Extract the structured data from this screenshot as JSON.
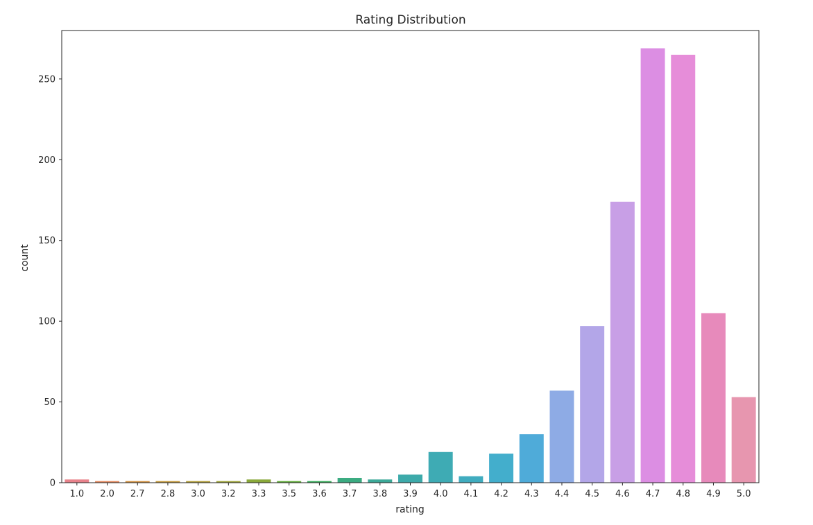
{
  "chart_data": {
    "type": "bar",
    "title": "Rating Distribution",
    "xlabel": "rating",
    "ylabel": "count",
    "ylim": [
      0,
      280
    ],
    "yticks": [
      0,
      50,
      100,
      150,
      200,
      250
    ],
    "grid": false,
    "legend": "none",
    "categories": [
      "1.0",
      "2.0",
      "2.7",
      "2.8",
      "3.0",
      "3.2",
      "3.3",
      "3.5",
      "3.6",
      "3.7",
      "3.8",
      "3.9",
      "4.0",
      "4.1",
      "4.2",
      "4.3",
      "4.4",
      "4.5",
      "4.6",
      "4.7",
      "4.8",
      "4.9",
      "5.0"
    ],
    "values": [
      2,
      1,
      1,
      1,
      1,
      1,
      2,
      1,
      1,
      3,
      2,
      5,
      19,
      4,
      18,
      30,
      57,
      97,
      174,
      269,
      265,
      105,
      53
    ],
    "colors": [
      "#e8828b",
      "#e58a5e",
      "#d39240",
      "#c49a3c",
      "#b29f3a",
      "#9fa43a",
      "#8aa93a",
      "#63ae3b",
      "#3aae5c",
      "#3bab81",
      "#3ca998",
      "#3daaaa",
      "#3eabb4",
      "#40acbf",
      "#43aecc",
      "#4fabd9",
      "#8eabe5",
      "#b3a6e8",
      "#c89fe6",
      "#dc8ee3",
      "#e68dd9",
      "#e78abb",
      "#e796af"
    ]
  }
}
